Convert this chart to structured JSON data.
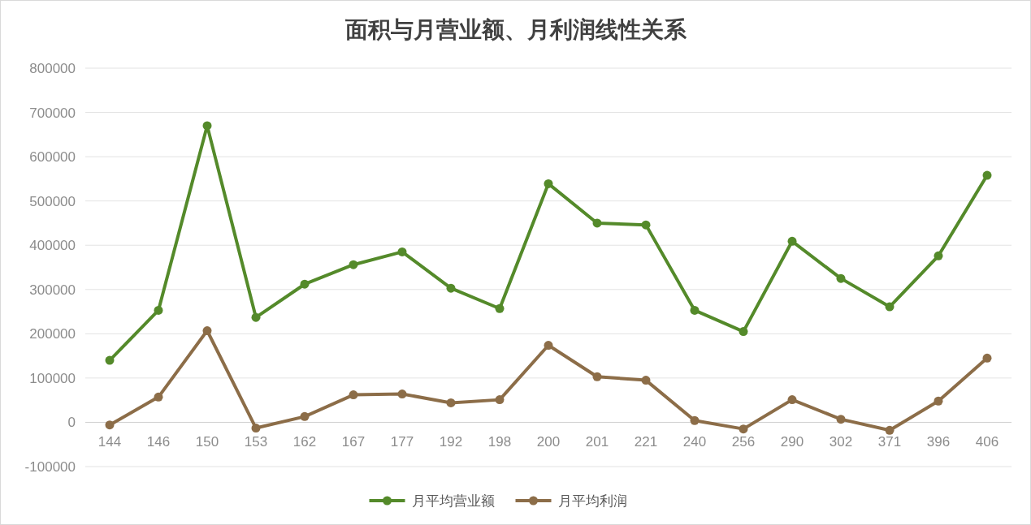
{
  "chart_data": {
    "type": "line",
    "title": "面积与月营业额、月利润线性关系",
    "categories": [
      "144",
      "146",
      "150",
      "153",
      "162",
      "167",
      "177",
      "192",
      "198",
      "200",
      "201",
      "221",
      "240",
      "256",
      "290",
      "302",
      "371",
      "396",
      "406"
    ],
    "series": [
      {
        "name": "月平均营业额",
        "color": "#548a2a",
        "values": [
          140000,
          253000,
          670000,
          237000,
          312000,
          356000,
          385000,
          303000,
          257000,
          539000,
          450000,
          446000,
          253000,
          205000,
          409000,
          325000,
          261000,
          376000,
          558000
        ]
      },
      {
        "name": "月平均利润",
        "color": "#8c6d48",
        "values": [
          -6000,
          57000,
          207000,
          -13000,
          13000,
          62000,
          64000,
          44000,
          51000,
          174000,
          103000,
          95000,
          4000,
          -15000,
          51000,
          7000,
          -18000,
          48000,
          145000
        ]
      }
    ],
    "ylim": [
      -100000,
      800000
    ],
    "yticks": [
      -100000,
      0,
      100000,
      200000,
      300000,
      400000,
      500000,
      600000,
      700000,
      800000
    ],
    "grid": "y",
    "legend": "bottom",
    "marker": "circle",
    "line_style": "solid"
  }
}
